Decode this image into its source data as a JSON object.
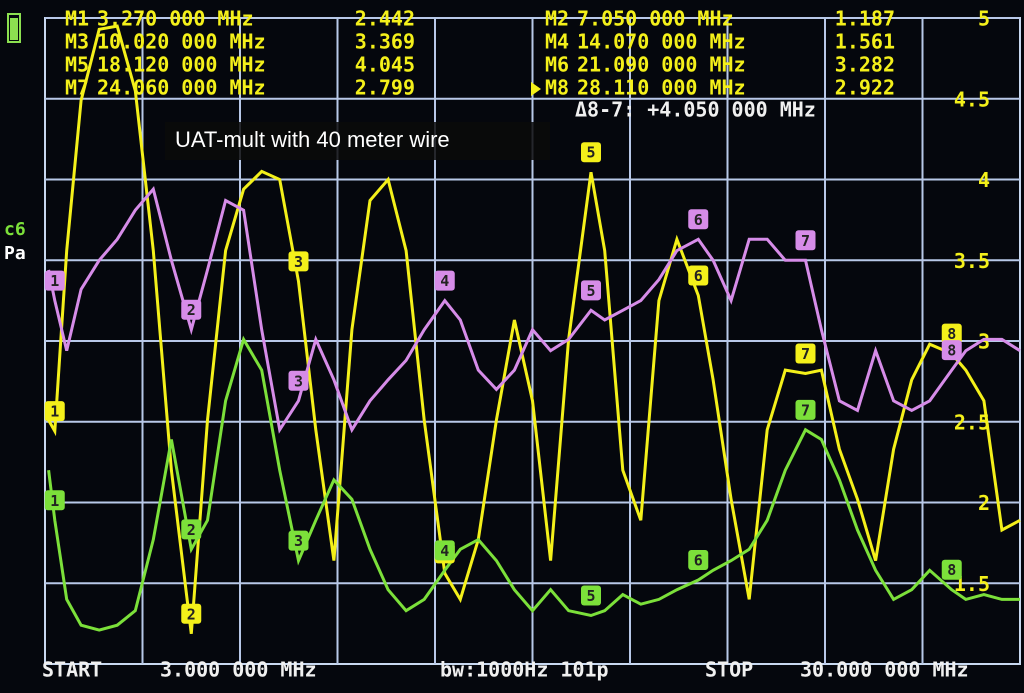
{
  "chart_data": {
    "type": "line",
    "annotation": "UAT-mult with 40 meter wire",
    "xlim": [
      3,
      30
    ],
    "ylim": [
      1,
      5
    ],
    "yticks": [
      1.5,
      2,
      2.5,
      3,
      3.5,
      4,
      4.5,
      5
    ],
    "grid": true,
    "x": [
      3.1,
      3.27,
      3.6,
      4.0,
      4.5,
      5.0,
      5.5,
      6.0,
      6.5,
      7.05,
      7.5,
      8.0,
      8.5,
      9.0,
      9.5,
      10.02,
      10.5,
      11,
      11.5,
      12,
      12.5,
      13,
      13.5,
      14.07,
      14.5,
      15,
      15.5,
      16,
      16.5,
      17,
      17.5,
      18.12,
      18.5,
      19,
      19.5,
      20,
      20.5,
      21.09,
      21.5,
      22,
      22.5,
      23,
      23.5,
      24.06,
      24.5,
      25,
      25.5,
      26,
      26.5,
      27,
      27.5,
      28.11,
      28.5,
      29,
      29.5,
      30
    ],
    "series": [
      {
        "color": "#f4f01a",
        "values": [
          2.51,
          2.442,
          3.56,
          4.49,
          4.93,
          4.95,
          4.55,
          3.56,
          2.2,
          1.187,
          2.51,
          3.56,
          3.94,
          4.05,
          4.0,
          3.369,
          2.45,
          1.64,
          3.07,
          3.87,
          4.0,
          3.56,
          2.51,
          1.561,
          1.4,
          1.77,
          2.51,
          3.13,
          2.63,
          1.64,
          3.01,
          4.045,
          3.56,
          2.2,
          1.89,
          3.25,
          3.63,
          3.282,
          2.76,
          2.02,
          1.4,
          2.45,
          2.82,
          2.799,
          2.82,
          2.33,
          2.02,
          1.64,
          2.33,
          2.76,
          2.98,
          2.922,
          2.82,
          2.63,
          1.83,
          1.89
        ]
      },
      {
        "color": "#7ce03a",
        "values": [
          2.2,
          1.89,
          1.4,
          1.24,
          1.21,
          1.24,
          1.33,
          1.77,
          2.39,
          1.71,
          1.89,
          2.63,
          3.01,
          2.82,
          2.2,
          1.64,
          1.89,
          2.14,
          2.02,
          1.71,
          1.46,
          1.33,
          1.4,
          1.58,
          1.71,
          1.77,
          1.64,
          1.46,
          1.33,
          1.46,
          1.33,
          1.3,
          1.33,
          1.43,
          1.37,
          1.4,
          1.46,
          1.52,
          1.58,
          1.64,
          1.71,
          1.89,
          2.2,
          2.45,
          2.39,
          2.14,
          1.83,
          1.58,
          1.4,
          1.46,
          1.58,
          1.46,
          1.4,
          1.43,
          1.4,
          1.4
        ]
      },
      {
        "color": "#d68ce8",
        "values": [
          3.44,
          3.25,
          2.94,
          3.32,
          3.5,
          3.63,
          3.81,
          3.94,
          3.5,
          3.07,
          3.44,
          3.87,
          3.81,
          3.07,
          2.45,
          2.63,
          3.01,
          2.76,
          2.45,
          2.63,
          2.76,
          2.88,
          3.07,
          3.25,
          3.13,
          2.82,
          2.7,
          2.82,
          3.07,
          2.94,
          3.01,
          3.19,
          3.13,
          3.19,
          3.25,
          3.38,
          3.56,
          3.63,
          3.5,
          3.25,
          3.63,
          3.63,
          3.5,
          3.5,
          3.07,
          2.63,
          2.57,
          2.94,
          2.63,
          2.57,
          2.63,
          2.82,
          2.94,
          3.01,
          3.01,
          2.94
        ]
      }
    ],
    "flag_labels": [
      "1",
      "2",
      "3",
      "4",
      "5",
      "6",
      "7",
      "8"
    ],
    "markers": [
      {
        "label": "M1",
        "freq": "3.270 000 MHz",
        "value": 2.442
      },
      {
        "label": "M2",
        "freq": "7.050 000 MHz",
        "value": 1.187
      },
      {
        "label": "M3",
        "freq": "10.020 000 MHz",
        "value": 3.369
      },
      {
        "label": "M4",
        "freq": "14.070 000 MHz",
        "value": 1.561
      },
      {
        "label": "M5",
        "freq": "18.120 000 MHz",
        "value": 4.045
      },
      {
        "label": "M6",
        "freq": "21.090 000 MHz",
        "value": 3.282
      },
      {
        "label": "M7",
        "freq": "24.060 000 MHz",
        "value": 2.799
      },
      {
        "label": "M8",
        "freq": "28.110 000 MHz",
        "value": 2.922
      }
    ],
    "delta": "Δ8-7: +4.050 000 MHz",
    "channel": "c6",
    "format": "Pa",
    "start_label": "START",
    "start": "3.000 000 MHz",
    "bandwidth": "bw:1000Hz 101p",
    "stop_label": "STOP",
    "stop": "30.000 000 MHz"
  }
}
